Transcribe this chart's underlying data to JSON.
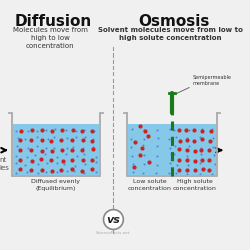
{
  "bg_color": "#f0f0f0",
  "title_left": "Diffusion",
  "title_right": "Osmosis",
  "vs_text": "vs",
  "subtitle_left": "Molecules move from\nhigh to low\nconcentration",
  "subtitle_right": "Solvent molecules move from low to\nhigh solute concentration",
  "label_left_bottom": "Diffused evenly\n(Equilibrium)",
  "label_right_bottom_left": "Low solute\nconcentration",
  "label_right_bottom_right": "High solute\nconcentration",
  "semiperm_label": "Semipermeable\nmembrane",
  "beaker_wall_color": "#aaaaaa",
  "water_color": "#85C8E8",
  "water_color_light": "#a0d5f0",
  "dot_red": "#cc2222",
  "dot_blue": "#5588dd",
  "membrane_color": "#1a7a1a",
  "title_color": "#111111",
  "divider_color": "#999999",
  "watermark": "ScienceFacts.net",
  "font_title": 11,
  "font_sub": 5,
  "font_label": 4.5,
  "font_vs": 8,
  "font_watermark": 3
}
